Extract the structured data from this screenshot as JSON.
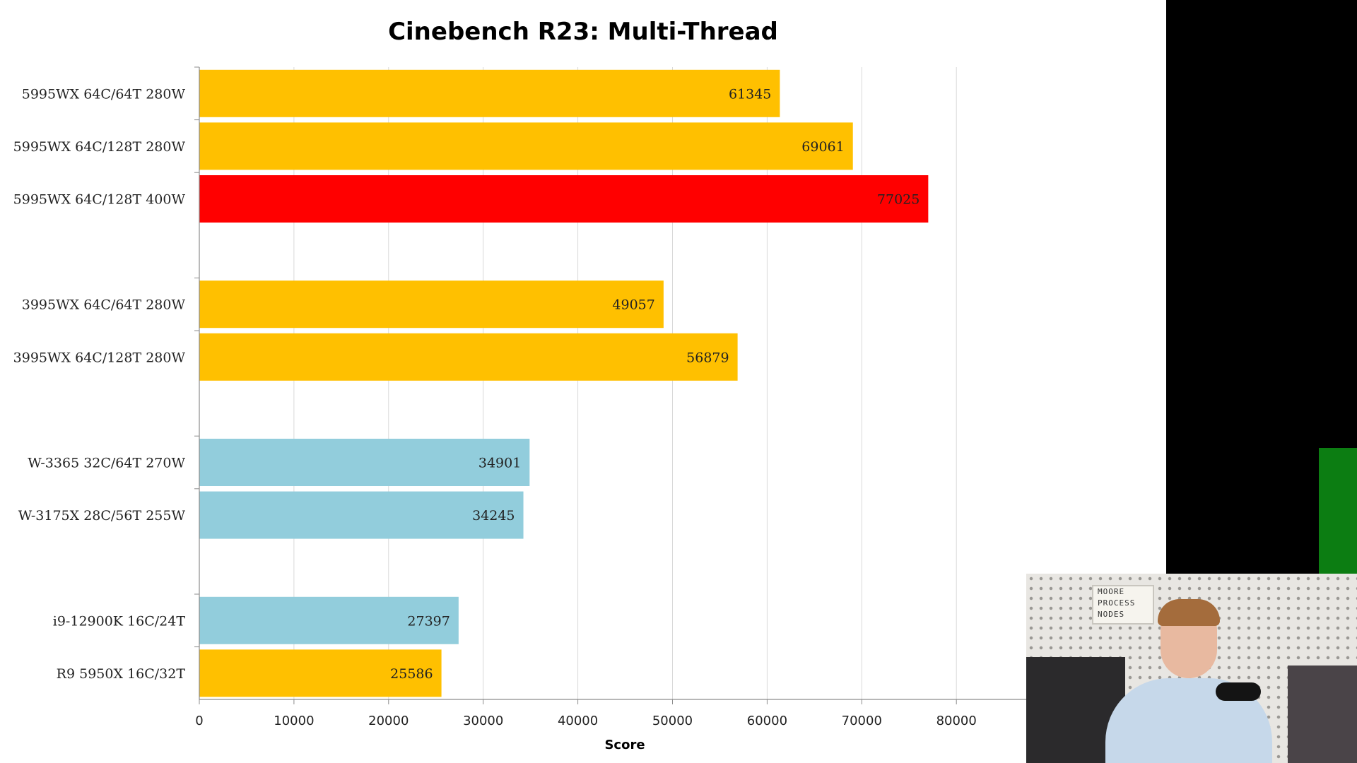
{
  "colors": {
    "amd_threadripper": "#FFC000",
    "highlight": "#FF0000",
    "intel": "#92CDDC",
    "amd_desktop": "#FFC000",
    "grid": "#D9D9D9"
  },
  "chart_data": {
    "type": "bar",
    "orientation": "horizontal",
    "title": "Cinebench R23: Multi-Thread",
    "xlabel": "Score",
    "ylabel": "",
    "xlim": [
      0,
      90000
    ],
    "xticks": [
      0,
      10000,
      20000,
      30000,
      40000,
      50000,
      60000,
      70000,
      80000
    ],
    "grid": "vertical",
    "legend": "none",
    "data_labels": true,
    "groups": [
      {
        "bars": [
          {
            "label": "5995WX 64C/64T 280W",
            "value": 61345,
            "color": "#FFC000"
          },
          {
            "label": "5995WX 64C/128T 280W",
            "value": 69061,
            "color": "#FFC000"
          },
          {
            "label": "5995WX 64C/128T 400W",
            "value": 77025,
            "color": "#FF0000"
          }
        ]
      },
      {
        "bars": [
          {
            "label": "3995WX 64C/64T 280W",
            "value": 49057,
            "color": "#FFC000"
          },
          {
            "label": "3995WX 64C/128T 280W",
            "value": 56879,
            "color": "#FFC000"
          }
        ]
      },
      {
        "bars": [
          {
            "label": "W-3365 32C/64T 270W",
            "value": 34901,
            "color": "#92CDDC"
          },
          {
            "label": "W-3175X 28C/56T 255W",
            "value": 34245,
            "color": "#92CDDC"
          }
        ]
      },
      {
        "bars": [
          {
            "label": "i9-12900K 16C/24T",
            "value": 27397,
            "color": "#92CDDC"
          },
          {
            "label": "R9 5950X 16C/32T",
            "value": 25586,
            "color": "#FFC000"
          }
        ]
      }
    ]
  },
  "webcam": {
    "lightboard_lines": [
      "MOORE",
      "PROCESS",
      "NODES"
    ]
  }
}
